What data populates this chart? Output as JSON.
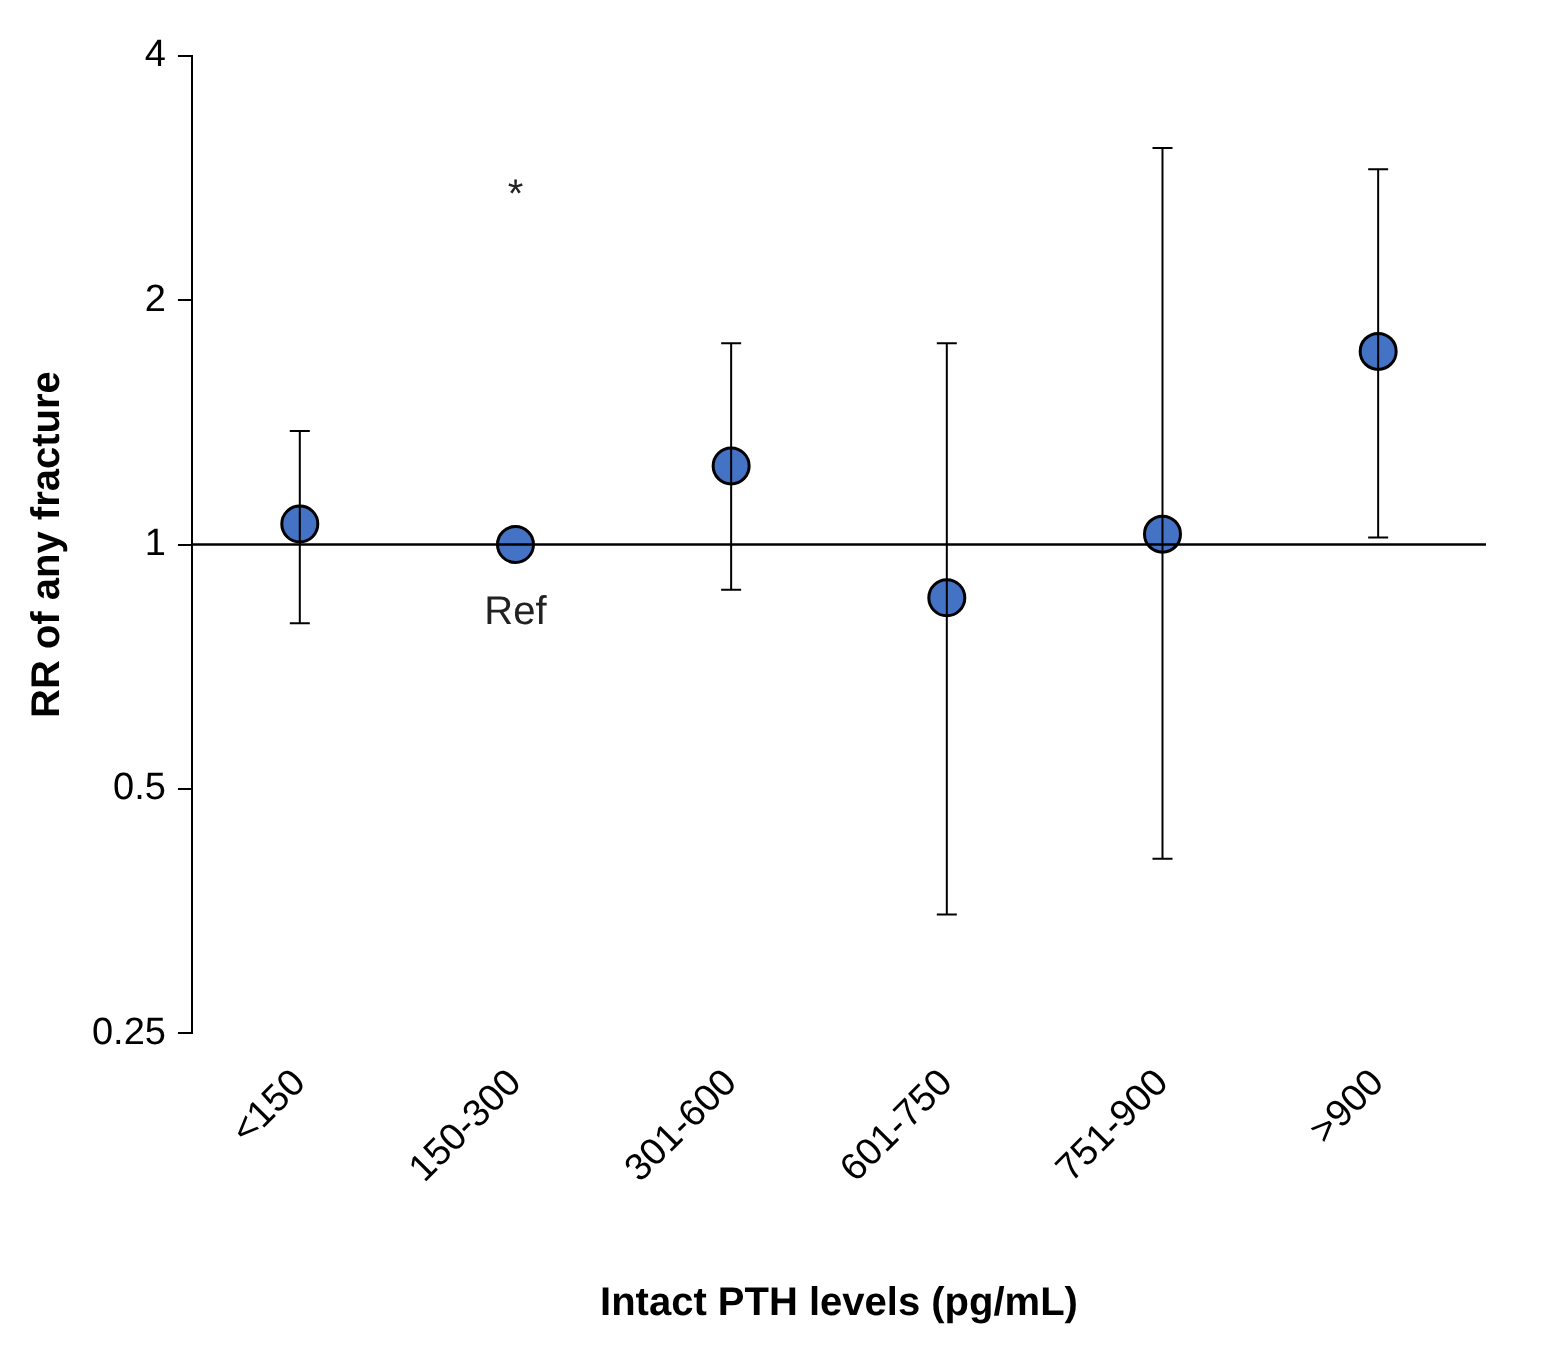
{
  "chart_data": {
    "type": "scatter",
    "xlabel": "Intact PTH levels (pg/mL)",
    "ylabel": "RR of any fracture",
    "categories": [
      "<150",
      "150-300",
      "301-600",
      "601-750",
      "751-900",
      ">900"
    ],
    "values": [
      1.06,
      1.0,
      1.25,
      0.86,
      1.03,
      1.73
    ],
    "errors": [
      [
        0.8,
        1.38
      ],
      null,
      [
        0.88,
        1.77
      ],
      [
        0.35,
        1.77
      ],
      [
        0.41,
        3.08
      ],
      [
        1.02,
        2.9
      ]
    ],
    "color": "#4472c4",
    "marker": "circle",
    "log": "y",
    "ylim": [
      0.25,
      4
    ],
    "yticks": [
      0.25,
      0.5,
      1,
      2,
      4
    ],
    "grid": false,
    "legend": false,
    "ref_lines": [
      {
        "axis": "y",
        "value": 1,
        "color": "#000000"
      }
    ],
    "annotations": [
      "*",
      {
        "text": "Ref",
        "x": "150-300",
        "y": 1.0
      }
    ]
  }
}
